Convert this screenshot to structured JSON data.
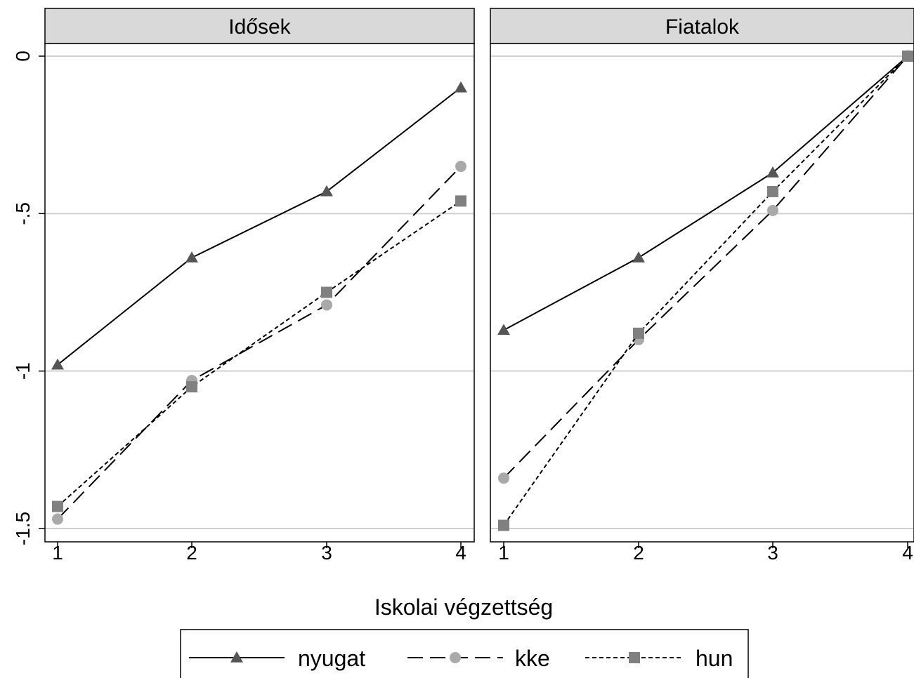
{
  "chart_data": {
    "type": "line",
    "xlabel": "Iskolai végzettség",
    "ylabel": "",
    "xticks": [
      "1",
      "2",
      "3",
      "4"
    ],
    "yticks": [
      {
        "value": 0,
        "label": "0"
      },
      {
        "value": -0.5,
        "label": "-.5"
      },
      {
        "value": -1,
        "label": "-1"
      },
      {
        "value": -1.5,
        "label": "-1.5"
      }
    ],
    "xlim": [
      0.9,
      4.02
    ],
    "ylim": [
      -1.55,
      0.02
    ],
    "grid": true,
    "legend": [
      {
        "name": "nyugat",
        "marker": "triangle",
        "dash": "solid",
        "color": "#555555"
      },
      {
        "name": "kke",
        "marker": "circle",
        "dash": "long-dash",
        "color": "#a9a9a9"
      },
      {
        "name": "hun",
        "marker": "square",
        "dash": "short-dash",
        "color": "#808080"
      }
    ],
    "panels": [
      {
        "title": "Idősek",
        "x": [
          1,
          2,
          3,
          4
        ],
        "series": [
          {
            "name": "nyugat",
            "values": [
              -0.98,
              -0.64,
              -0.43,
              -0.1
            ]
          },
          {
            "name": "kke",
            "values": [
              -1.47,
              -1.03,
              -0.79,
              -0.35
            ]
          },
          {
            "name": "hun",
            "values": [
              -1.43,
              -1.05,
              -0.75,
              -0.46
            ]
          }
        ]
      },
      {
        "title": "Fiatalok",
        "x": [
          1,
          2,
          3,
          4
        ],
        "series": [
          {
            "name": "nyugat",
            "values": [
              -0.87,
              -0.64,
              -0.37,
              0
            ]
          },
          {
            "name": "kke",
            "values": [
              -1.34,
              -0.9,
              -0.49,
              0
            ]
          },
          {
            "name": "hun",
            "values": [
              -1.49,
              -0.88,
              -0.43,
              0
            ]
          }
        ]
      }
    ]
  }
}
